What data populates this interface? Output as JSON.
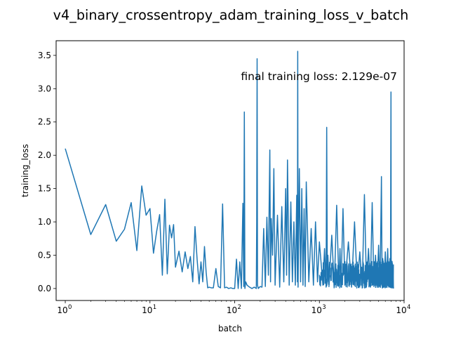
{
  "chart_data": {
    "type": "line",
    "title": "v4_binary_crossentropy_adam_training_loss_v_batch",
    "xlabel": "batch",
    "ylabel": "training_loss",
    "annotation": "final training loss: 2.129e-07",
    "xscale": "log",
    "xlim": [
      0.78,
      10000
    ],
    "ylim": [
      -0.18,
      3.72
    ],
    "x_ticks": [
      {
        "base": "10",
        "exp": "0",
        "value": 1
      },
      {
        "base": "10",
        "exp": "1",
        "value": 10
      },
      {
        "base": "10",
        "exp": "2",
        "value": 100
      },
      {
        "base": "10",
        "exp": "3",
        "value": 1000
      },
      {
        "base": "10",
        "exp": "4",
        "value": 10000
      }
    ],
    "y_ticks": [
      "0.0",
      "0.5",
      "1.0",
      "1.5",
      "2.0",
      "2.5",
      "3.0",
      "3.5"
    ],
    "grid": false,
    "series": [
      {
        "name": "",
        "color": "#1f77b4",
        "x": [
          1,
          2,
          3,
          4,
          5,
          6,
          7,
          8,
          9,
          10,
          11,
          12,
          13,
          14,
          15,
          16,
          17,
          18,
          19,
          20,
          22,
          24,
          26,
          28,
          30,
          32,
          34,
          36,
          38,
          40,
          42,
          44,
          46,
          48,
          50,
          53,
          56,
          60,
          64,
          68,
          72,
          76,
          80,
          85,
          90,
          95,
          100,
          105,
          110,
          115,
          120,
          125,
          128,
          130,
          132,
          135,
          140,
          150,
          160,
          170,
          180,
          182,
          184,
          186,
          190,
          200,
          210,
          220,
          230,
          240,
          250,
          255,
          260,
          265,
          270,
          280,
          290,
          300,
          320,
          340,
          360,
          380,
          400,
          410,
          420,
          440,
          460,
          480,
          500,
          520,
          540,
          550,
          555,
          560,
          580,
          600,
          620,
          640,
          660,
          680,
          700,
          750,
          800,
          850,
          900,
          950,
          1000,
          1100,
          1150,
          1200,
          1220,
          1240,
          1260,
          1300,
          1400,
          1500,
          1600,
          1700,
          1750,
          1800,
          1900,
          2000,
          2200,
          2400,
          2600,
          2800,
          3000,
          3200,
          3400,
          3600,
          3800,
          4000,
          4200,
          4400,
          4600,
          4800,
          5000,
          5200,
          5400,
          5500,
          5600,
          5800,
          6000,
          6200,
          6400,
          6600,
          6800,
          6900,
          7000,
          7050,
          7100,
          7200,
          7300,
          7500
        ],
        "y": [
          2.1,
          0.81,
          1.26,
          0.71,
          0.89,
          1.29,
          0.57,
          1.54,
          1.1,
          1.2,
          0.53,
          0.86,
          1.11,
          0.2,
          1.34,
          0.22,
          0.95,
          0.76,
          0.96,
          0.32,
          0.56,
          0.25,
          0.55,
          0.3,
          0.48,
          0.1,
          0.93,
          0.44,
          0.07,
          0.4,
          0.1,
          0.63,
          0.25,
          0.01,
          0.02,
          0.01,
          0.01,
          0.3,
          0.03,
          0.01,
          1.27,
          0.01,
          0.02,
          0.0,
          0.01,
          0.0,
          0.0,
          0.44,
          0.0,
          0.4,
          0.0,
          1.28,
          0.03,
          2.65,
          0.0,
          0.1,
          0.05,
          0.02,
          0.0,
          0.02,
          0.0,
          1.0,
          3.45,
          0.05,
          0.0,
          0.03,
          0.02,
          0.9,
          0.03,
          1.07,
          0.2,
          1.2,
          2.08,
          0.1,
          1.05,
          0.5,
          1.8,
          0.05,
          1.1,
          0.02,
          1.23,
          0.1,
          1.5,
          0.2,
          1.93,
          0.05,
          1.3,
          0.1,
          1.0,
          0.05,
          1.4,
          0.1,
          3.56,
          0.02,
          1.8,
          0.1,
          1.5,
          0.05,
          1.2,
          0.03,
          1.6,
          0.1,
          0.9,
          0.05,
          1.0,
          0.1,
          0.7,
          0.05,
          0.6,
          0.02,
          2.42,
          0.1,
          0.5,
          0.05,
          0.8,
          0.02,
          1.25,
          0.05,
          0.6,
          0.02,
          1.2,
          0.05,
          0.7,
          0.02,
          1.0,
          0.05,
          0.55,
          0.02,
          1.41,
          0.03,
          0.6,
          0.02,
          1.29,
          0.03,
          0.5,
          0.02,
          0.65,
          0.02,
          1.68,
          0.03,
          0.45,
          0.02,
          0.55,
          0.02,
          0.6,
          0.02,
          0.45,
          0.02,
          2.95,
          0.02,
          0.4,
          0.02,
          0.35,
          0.0
        ]
      }
    ]
  }
}
